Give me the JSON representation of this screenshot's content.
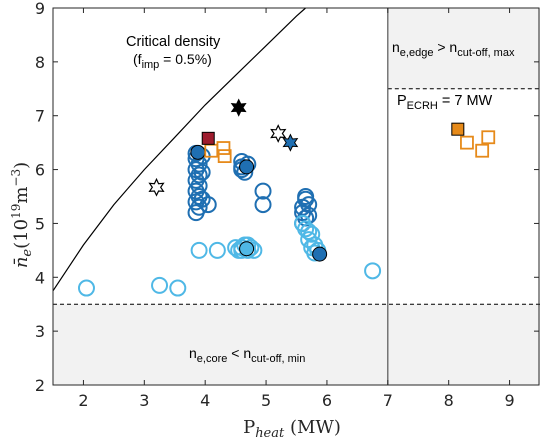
{
  "chart_data": {
    "type": "scatter",
    "xlabel": "P_heat (MW)",
    "ylabel": "n̄_e (10^19 m^-3)",
    "xlim": [
      1.5,
      9.5
    ],
    "ylim": [
      2,
      9
    ],
    "xticks": [
      2,
      3,
      4,
      5,
      6,
      7,
      8,
      9
    ],
    "yticks": [
      2,
      3,
      4,
      5,
      6,
      7,
      8,
      9
    ],
    "colors": {
      "dark_blue": "#1f6fb2",
      "light_blue": "#4fb8e6",
      "orange": "#e68a1a",
      "dark_red": "#9e1c2e",
      "shade": "#f2f2f2"
    },
    "regions": {
      "shade_top_right_y": 7.5,
      "shade_bottom_y": 3.5,
      "vertical_line_x": 7
    },
    "critical_density_curve": [
      [
        1.5,
        3.75
      ],
      [
        2.0,
        4.6
      ],
      [
        2.5,
        5.35
      ],
      [
        3.0,
        6.0
      ],
      [
        3.5,
        6.6
      ],
      [
        4.0,
        7.2
      ],
      [
        4.5,
        7.75
      ],
      [
        5.0,
        8.3
      ],
      [
        5.5,
        8.85
      ],
      [
        5.65,
        9.0
      ]
    ],
    "annotations": {
      "critical_line1": "Critical density",
      "critical_line2_pre": "(f",
      "critical_line2_sub": "imp",
      "critical_line2_post": " = 0.5%)",
      "edge_pre": "n",
      "edge_sub1": "e,edge",
      "edge_mid": " > n",
      "edge_sub2": "cut-off, max",
      "core_pre": "n",
      "core_sub1": "e,core",
      "core_mid": " < n",
      "core_sub2": "cut-off, min",
      "ecrh_pre": "P",
      "ecrh_sub": "ECRH",
      "ecrh_post": " = 7 MW"
    },
    "series": [
      {
        "marker": "circle-open",
        "color": "dark_blue",
        "points": [
          [
            3.85,
            6.3
          ],
          [
            3.85,
            6.2
          ],
          [
            3.9,
            6.1
          ],
          [
            3.85,
            6.0
          ],
          [
            3.9,
            5.9
          ],
          [
            3.85,
            5.8
          ],
          [
            3.9,
            5.7
          ],
          [
            3.85,
            5.6
          ],
          [
            3.9,
            5.5
          ],
          [
            3.85,
            5.4
          ],
          [
            3.9,
            5.3
          ],
          [
            3.85,
            5.2
          ],
          [
            3.95,
            6.25
          ],
          [
            3.95,
            5.95
          ],
          [
            3.95,
            5.45
          ],
          [
            4.6,
            6.15
          ],
          [
            4.6,
            6.05
          ],
          [
            4.65,
            5.95
          ],
          [
            4.7,
            6.1
          ],
          [
            4.6,
            6.0
          ],
          [
            4.05,
            5.35
          ],
          [
            4.95,
            5.6
          ],
          [
            4.95,
            5.35
          ],
          [
            5.65,
            5.5
          ],
          [
            5.65,
            5.45
          ],
          [
            5.7,
            5.35
          ],
          [
            5.6,
            5.3
          ],
          [
            5.6,
            5.2
          ],
          [
            5.7,
            5.15
          ],
          [
            5.65,
            5.1
          ],
          [
            5.6,
            5.0
          ]
        ]
      },
      {
        "marker": "circle-open",
        "color": "light_blue",
        "points": [
          [
            2.05,
            3.8
          ],
          [
            3.25,
            3.85
          ],
          [
            3.55,
            3.8
          ],
          [
            3.9,
            4.5
          ],
          [
            4.2,
            4.5
          ],
          [
            4.5,
            4.55
          ],
          [
            4.55,
            4.5
          ],
          [
            4.6,
            4.55
          ],
          [
            4.65,
            4.6
          ],
          [
            4.7,
            4.5
          ],
          [
            4.75,
            4.55
          ],
          [
            4.8,
            4.5
          ],
          [
            4.6,
            4.5
          ],
          [
            4.7,
            4.6
          ],
          [
            5.6,
            5.0
          ],
          [
            5.65,
            4.9
          ],
          [
            5.7,
            4.85
          ],
          [
            5.75,
            4.8
          ],
          [
            5.7,
            4.7
          ],
          [
            5.8,
            4.6
          ],
          [
            5.75,
            4.55
          ],
          [
            5.85,
            4.5
          ],
          [
            5.8,
            4.45
          ],
          [
            6.75,
            4.12
          ]
        ]
      },
      {
        "marker": "circle-filled",
        "color": "dark_blue",
        "points": [
          [
            3.88,
            6.32
          ],
          [
            4.68,
            6.05
          ],
          [
            5.88,
            4.43
          ]
        ]
      },
      {
        "marker": "circle-filled",
        "color": "light_blue",
        "points": [
          [
            4.68,
            4.53
          ]
        ]
      },
      {
        "marker": "square-open",
        "color": "orange",
        "points": [
          [
            4.3,
            6.4
          ],
          [
            4.32,
            6.25
          ],
          [
            4.1,
            6.35
          ],
          [
            8.3,
            6.5
          ],
          [
            8.55,
            6.35
          ],
          [
            8.65,
            6.6
          ]
        ]
      },
      {
        "marker": "square-filled",
        "color": "orange",
        "points": [
          [
            8.15,
            6.75
          ]
        ]
      },
      {
        "marker": "square-filled",
        "color": "dark_red",
        "points": [
          [
            4.05,
            6.58
          ]
        ]
      },
      {
        "marker": "hexagram-open",
        "color": "black",
        "points": [
          [
            3.2,
            5.67
          ],
          [
            5.2,
            6.67
          ]
        ]
      },
      {
        "marker": "hexagram-filled",
        "color": "black",
        "points": [
          [
            4.55,
            7.15
          ]
        ]
      },
      {
        "marker": "hexagram-filled",
        "color": "dark_blue",
        "points": [
          [
            5.4,
            6.5
          ]
        ]
      }
    ]
  }
}
